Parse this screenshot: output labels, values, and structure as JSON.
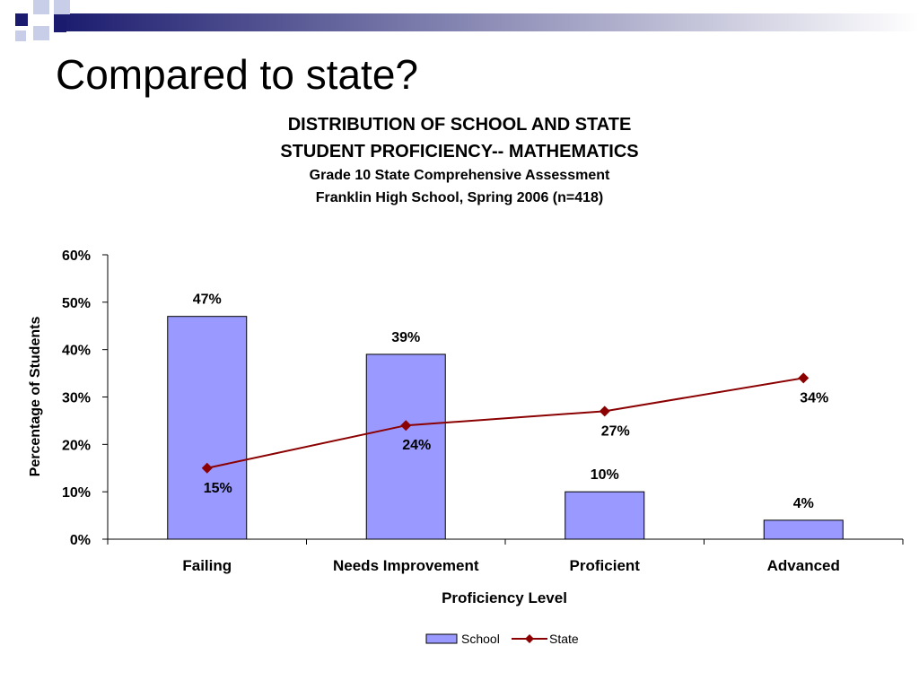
{
  "slide": {
    "title": "Compared to state?"
  },
  "theme": {
    "banner_dark": "#1a1a6e",
    "banner_light": "#ffffff",
    "square_dark": "#1a1a6e",
    "square_light": "#c8cde8",
    "bar_fill": "#9999ff",
    "bar_stroke": "#000000",
    "line_color": "#8b0000"
  },
  "chart_data": {
    "type": "bar",
    "title": "DISTRIBUTION OF SCHOOL AND STATE",
    "title_line2": "STUDENT  PROFICIENCY-- MATHEMATICS",
    "subtitle": "Grade 10 State Comprehensive Assessment",
    "subtitle_line2": "Franklin High School, Spring 2006 (n=418)",
    "categories": [
      "Failing",
      "Needs Improvement",
      "Proficient",
      "Advanced"
    ],
    "series": [
      {
        "name": "School",
        "type": "bar",
        "values": [
          47,
          39,
          10,
          4
        ],
        "labels": [
          "47%",
          "39%",
          "10%",
          "4%"
        ]
      },
      {
        "name": "State",
        "type": "line",
        "marker": "diamond",
        "values": [
          15,
          24,
          27,
          34
        ],
        "labels": [
          "15%",
          "24%",
          "27%",
          "34%"
        ]
      }
    ],
    "xlabel": "Proficiency Level",
    "ylabel": "Percentage of Students",
    "ylim": [
      0,
      60
    ],
    "yticks": [
      "0%",
      "10%",
      "20%",
      "30%",
      "40%",
      "50%",
      "60%"
    ],
    "grid": false,
    "legend": "bottom"
  }
}
